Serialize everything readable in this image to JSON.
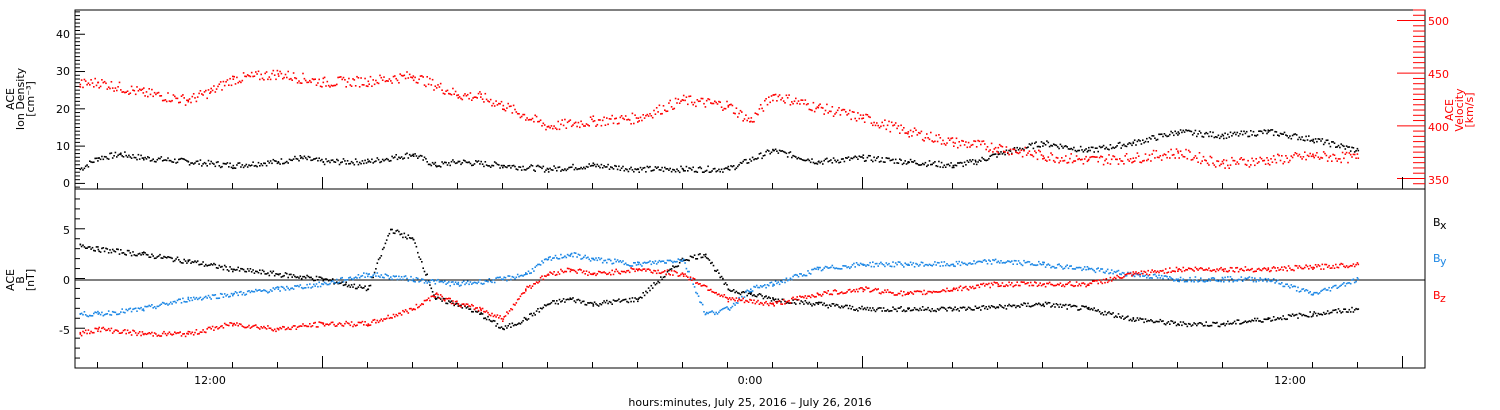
{
  "xlabel": "hours:minutes, July 25, 2016 – July 26, 2016",
  "time_ticks": [
    "12:00",
    "0:00",
    "12:00"
  ],
  "chart_data": [
    {
      "type": "scatter",
      "panel": "top",
      "ylabel_left": [
        "ACE",
        "Ion Density",
        "[cm⁻³]"
      ],
      "ylabel_right": [
        "ACE",
        "Velocity",
        "[km/s]"
      ],
      "x_unit": "hours from 00:00 July 25, 2016",
      "xlim": [
        6.5,
        36.5
      ],
      "ylim_left": [
        -1.5,
        46.5
      ],
      "ylim_right": [
        340,
        510
      ],
      "yticks_left": [
        "0",
        "10",
        "20",
        "30",
        "40"
      ],
      "yticks_right": [
        "350",
        "400",
        "450",
        "500"
      ],
      "colors": {
        "density": "#000000",
        "velocity": "#ff0000"
      },
      "series": [
        {
          "name": "Ion Density",
          "axis": "left",
          "x": [
            6.6,
            7.0,
            7.5,
            8.0,
            9.0,
            10.0,
            11.0,
            11.5,
            12.0,
            13.0,
            14.0,
            14.5,
            15.0,
            16.0,
            17.0,
            18.0,
            19.0,
            20.0,
            21.0,
            22.0,
            23.0,
            24.0,
            25.0,
            26.0,
            26.5,
            27.0,
            28.0,
            29.0,
            30.0,
            31.0,
            32.0,
            33.0,
            34.0,
            35.0
          ],
          "y": [
            4,
            7,
            8,
            7,
            6,
            5,
            6,
            7,
            6,
            6,
            8,
            5,
            6,
            5,
            4,
            5,
            4,
            4,
            4,
            9,
            6,
            7,
            6,
            5,
            6,
            8,
            11,
            9,
            11,
            14,
            13,
            14,
            12,
            9
          ]
        },
        {
          "name": "Velocity",
          "axis": "right",
          "x": [
            6.6,
            7.0,
            8.0,
            9.0,
            9.5,
            10.0,
            11.0,
            12.0,
            13.0,
            14.0,
            15.0,
            15.5,
            16.0,
            17.0,
            18.0,
            19.0,
            20.0,
            21.0,
            21.5,
            22.0,
            23.0,
            24.0,
            25.0,
            26.0,
            27.0,
            28.0,
            29.0,
            30.0,
            31.0,
            32.0,
            33.0,
            34.0,
            35.0
          ],
          "y": [
            440,
            442,
            432,
            425,
            433,
            445,
            450,
            442,
            443,
            448,
            430,
            428,
            420,
            400,
            405,
            408,
            425,
            420,
            405,
            430,
            418,
            408,
            395,
            385,
            380,
            372,
            368,
            370,
            375,
            365,
            368,
            372,
            370
          ]
        }
      ]
    },
    {
      "type": "scatter",
      "panel": "bottom",
      "ylabel_left": [
        "ACE",
        "B",
        "[nT]"
      ],
      "x_unit": "hours from 00:00 July 25, 2016",
      "xlim": [
        6.5,
        36.5
      ],
      "ylim": [
        -9,
        9
      ],
      "yticks": [
        "-5",
        "0",
        "5"
      ],
      "zero_line": true,
      "legend": [
        "B",
        "B",
        "B"
      ],
      "legend_subscripts": [
        "x",
        "y",
        "z"
      ],
      "colors": {
        "Bx": "#000000",
        "By": "#1e88e5",
        "Bz": "#ff0000"
      },
      "series": [
        {
          "name": "Bx",
          "x": [
            6.6,
            7.0,
            8.0,
            9.0,
            10.0,
            11.0,
            12.0,
            12.5,
            13.0,
            13.5,
            14.0,
            14.5,
            15.0,
            15.5,
            16.0,
            16.5,
            17.0,
            17.5,
            18.0,
            19.0,
            20.0,
            20.5,
            21.0,
            21.5,
            22.0,
            23.0,
            24.0,
            25.0,
            26.0,
            27.0,
            28.0,
            29.0,
            30.0,
            31.0,
            32.0,
            33.0,
            34.0,
            35.0
          ],
          "y": [
            3.5,
            3.0,
            2.5,
            1.8,
            1.0,
            0.5,
            0.0,
            -0.5,
            -1.0,
            5.0,
            4.0,
            -2.0,
            -2.5,
            -3.5,
            -5.0,
            -4.0,
            -2.5,
            -2.0,
            -2.5,
            -2.0,
            2.0,
            2.5,
            -1.0,
            -1.5,
            -2.0,
            -2.5,
            -3.0,
            -3.0,
            -3.0,
            -2.8,
            -2.5,
            -3.0,
            -4.0,
            -4.5,
            -4.5,
            -4.0,
            -3.5,
            -3.0
          ]
        },
        {
          "name": "By",
          "x": [
            6.6,
            7.0,
            8.0,
            9.0,
            10.0,
            11.0,
            12.0,
            13.0,
            14.0,
            15.0,
            16.0,
            16.5,
            17.0,
            17.5,
            18.0,
            19.0,
            20.0,
            20.5,
            21.0,
            21.5,
            22.0,
            23.0,
            24.0,
            25.0,
            26.0,
            27.0,
            28.0,
            29.0,
            30.0,
            31.0,
            32.0,
            33.0,
            34.0,
            35.0
          ],
          "y": [
            -3.5,
            -3.5,
            -3.0,
            -2.0,
            -1.5,
            -1.0,
            -0.5,
            0.5,
            0.0,
            -0.5,
            0.0,
            0.5,
            2.0,
            2.5,
            2.0,
            1.5,
            2.0,
            -3.5,
            -3.0,
            -1.0,
            -0.5,
            1.0,
            1.5,
            1.5,
            1.5,
            1.8,
            1.5,
            1.0,
            0.5,
            0.0,
            0.0,
            0.0,
            -1.5,
            0.0
          ]
        },
        {
          "name": "Bz",
          "x": [
            6.6,
            7.0,
            8.0,
            9.0,
            10.0,
            11.0,
            12.0,
            13.0,
            14.0,
            14.5,
            15.0,
            15.5,
            16.0,
            16.5,
            17.0,
            17.5,
            18.0,
            19.0,
            20.0,
            21.0,
            22.0,
            23.0,
            24.0,
            25.0,
            26.0,
            27.0,
            28.0,
            29.0,
            30.0,
            31.0,
            32.0,
            33.0,
            34.0,
            35.0
          ],
          "y": [
            -5.5,
            -5.0,
            -5.5,
            -5.5,
            -4.5,
            -5.0,
            -4.5,
            -4.5,
            -3.0,
            -1.5,
            -2.5,
            -3.0,
            -4.0,
            -1.0,
            0.5,
            1.0,
            0.5,
            1.0,
            0.5,
            -2.0,
            -2.5,
            -1.5,
            -1.0,
            -1.5,
            -1.0,
            -0.5,
            -0.5,
            -0.5,
            0.5,
            1.0,
            1.0,
            1.0,
            1.2,
            1.5
          ]
        }
      ]
    }
  ]
}
